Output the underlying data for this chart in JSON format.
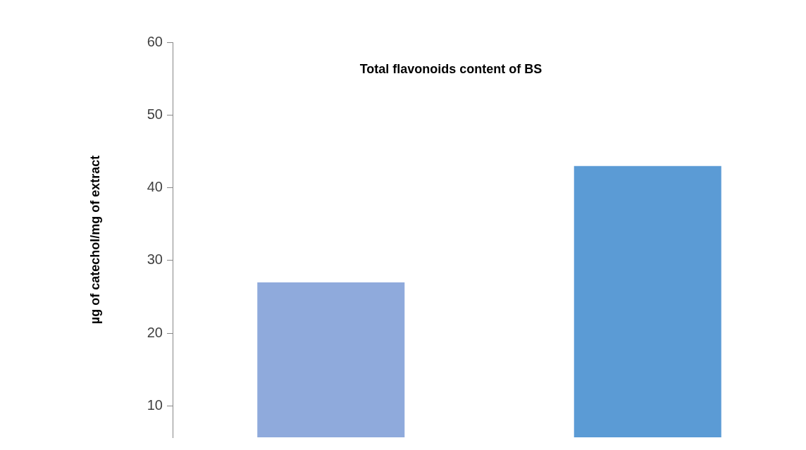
{
  "chart_data": {
    "type": "bar",
    "title": "Total flavonoids content of BS",
    "ylabel": "µg of catechol/mg of extract",
    "categories": [
      null,
      null
    ],
    "values": [
      27,
      43
    ],
    "colors": [
      "#8faadc",
      "#5b9bd5"
    ],
    "ylim": [
      5.7,
      60
    ],
    "yticks": [
      10,
      20,
      30,
      40,
      50,
      60
    ],
    "grid": false,
    "legend": false
  }
}
